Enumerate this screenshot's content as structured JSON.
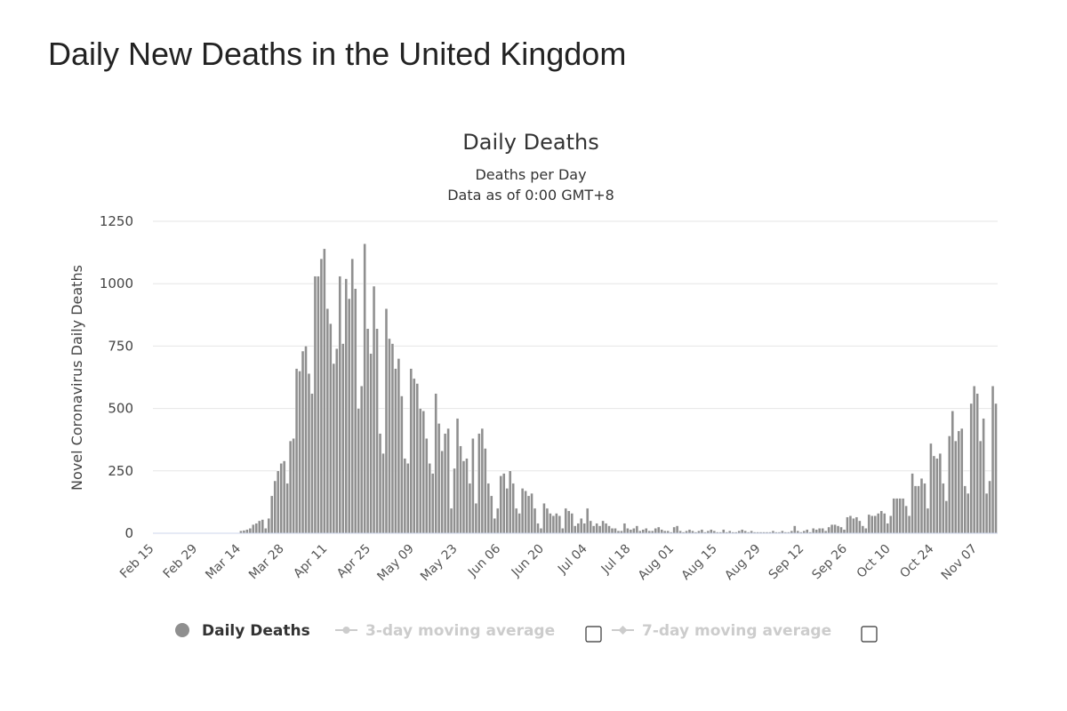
{
  "page_title": "Daily New Deaths in the United Kingdom",
  "colors": {
    "bar": "#8f8f8f",
    "grid": "#e6e6e6",
    "legend_inactive": "#cccccc"
  },
  "legend": [
    {
      "label": "Daily Deaths",
      "active": true,
      "checkbox": false
    },
    {
      "label": "3-day moving average",
      "active": false,
      "checkbox": true
    },
    {
      "label": "7-day moving average",
      "active": false,
      "checkbox": true
    }
  ],
  "chart_data": {
    "type": "bar",
    "title": "Daily Deaths",
    "subtitle": [
      "Deaths per Day",
      "Data as of 0:00 GMT+8"
    ],
    "ylabel": "Novel Coronavirus Daily Deaths",
    "xlabel": "",
    "ylim": [
      0,
      1250
    ],
    "yticks": [
      0,
      250,
      500,
      750,
      1000,
      1250
    ],
    "grid": true,
    "legend_position": "bottom",
    "x_tick_labels": [
      "Feb 15",
      "Feb 29",
      "Mar 14",
      "Mar 28",
      "Apr 11",
      "Apr 25",
      "May 09",
      "May 23",
      "Jun 06",
      "Jun 20",
      "Jul 04",
      "Jul 18",
      "Aug 01",
      "Aug 15",
      "Aug 29",
      "Sep 12",
      "Sep 26",
      "Oct 10",
      "Oct 24",
      "Nov 07"
    ],
    "x_start": "Feb 15",
    "series": [
      {
        "name": "Daily Deaths",
        "values": [
          0,
          0,
          0,
          0,
          0,
          0,
          0,
          0,
          0,
          0,
          0,
          0,
          0,
          0,
          0,
          0,
          0,
          0,
          0,
          0,
          0,
          0,
          0,
          0,
          0,
          0,
          0,
          0,
          10,
          12,
          15,
          20,
          35,
          40,
          50,
          55,
          20,
          60,
          150,
          210,
          250,
          280,
          290,
          200,
          370,
          380,
          660,
          650,
          730,
          750,
          640,
          560,
          1030,
          1030,
          1100,
          1140,
          900,
          840,
          680,
          740,
          1030,
          760,
          1020,
          940,
          1100,
          980,
          500,
          590,
          1160,
          820,
          720,
          990,
          820,
          400,
          320,
          900,
          780,
          760,
          660,
          700,
          550,
          300,
          280,
          660,
          620,
          600,
          500,
          490,
          380,
          280,
          240,
          560,
          440,
          330,
          400,
          420,
          100,
          260,
          460,
          350,
          290,
          300,
          200,
          380,
          120,
          400,
          420,
          340,
          200,
          150,
          60,
          100,
          230,
          240,
          180,
          250,
          200,
          100,
          80,
          180,
          170,
          150,
          160,
          100,
          40,
          20,
          120,
          100,
          80,
          70,
          80,
          70,
          20,
          100,
          90,
          80,
          30,
          40,
          60,
          40,
          100,
          50,
          30,
          40,
          30,
          50,
          40,
          30,
          20,
          20,
          10,
          10,
          40,
          20,
          15,
          20,
          30,
          10,
          15,
          20,
          10,
          10,
          20,
          25,
          15,
          10,
          10,
          5,
          25,
          30,
          10,
          5,
          10,
          15,
          10,
          5,
          10,
          15,
          5,
          10,
          15,
          10,
          5,
          5,
          15,
          5,
          10,
          5,
          5,
          10,
          15,
          10,
          5,
          10,
          5,
          5,
          5,
          5,
          5,
          5,
          10,
          5,
          5,
          10,
          5,
          5,
          10,
          30,
          10,
          5,
          10,
          15,
          5,
          20,
          15,
          20,
          20,
          10,
          25,
          35,
          35,
          30,
          25,
          15,
          65,
          70,
          60,
          65,
          50,
          30,
          20,
          75,
          70,
          70,
          80,
          90,
          80,
          40,
          70,
          140,
          140,
          140,
          140,
          110,
          70,
          240,
          190,
          190,
          220,
          200,
          100,
          360,
          310,
          300,
          320,
          200,
          130,
          390,
          490,
          370,
          410,
          420,
          190,
          160,
          520,
          590,
          560,
          370,
          460,
          160,
          210,
          590,
          520
        ]
      }
    ]
  }
}
